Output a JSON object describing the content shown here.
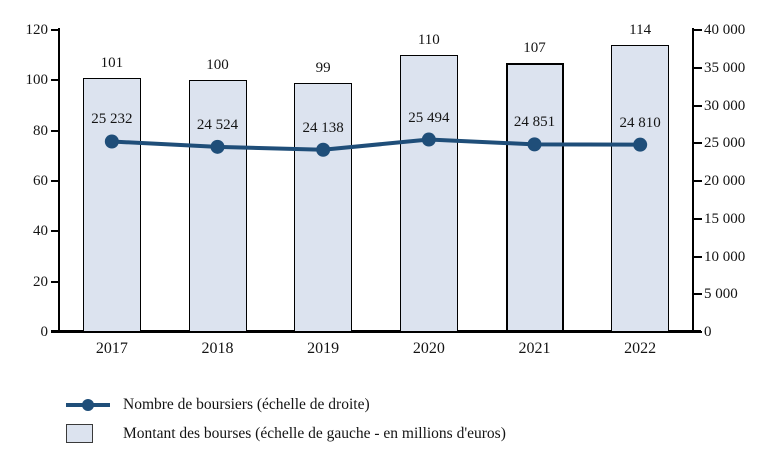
{
  "chart_data": {
    "type": "bar+line combo",
    "categories": [
      "2017",
      "2018",
      "2019",
      "2020",
      "2021",
      "2022"
    ],
    "series": [
      {
        "name": "Montant des bourses (échelle de gauche - en millions d'euros)",
        "type": "bar",
        "axis": "left",
        "values": [
          101,
          100,
          99,
          110,
          107,
          114
        ],
        "labels": [
          "101",
          "100",
          "99",
          "110",
          "107",
          "114"
        ],
        "emphasized_index": 4
      },
      {
        "name": "Nombre de boursiers (échelle de droite)",
        "type": "line",
        "axis": "right",
        "values": [
          25232,
          24524,
          24138,
          25494,
          24851,
          24810
        ],
        "labels": [
          "25 232",
          "24 524",
          "24 138",
          "25 494",
          "24 851",
          "24 810"
        ]
      }
    ],
    "left_axis": {
      "min": 0,
      "max": 120,
      "step": 20,
      "tick_labels": [
        "0",
        "20",
        "40",
        "60",
        "80",
        "100",
        "120"
      ]
    },
    "right_axis": {
      "min": 0,
      "max": 40000,
      "step": 5000,
      "tick_labels": [
        "0",
        "5 000",
        "10 000",
        "15 000",
        "20 000",
        "25 000",
        "30 000",
        "35 000",
        "40 000"
      ]
    },
    "legend": [
      {
        "marker": "line-dot",
        "label": "Nombre de boursiers (échelle de droite)"
      },
      {
        "marker": "box",
        "label": "Montant des bourses (échelle de gauche - en millions d'euros)"
      }
    ],
    "grid": "off",
    "legend_position": "bottom-left",
    "colors": {
      "bar_fill": "#dce3ef",
      "bar_border": "#000000",
      "line": "#1f4e79",
      "axis": "#000000",
      "text": "#141414",
      "background": "#ffffff"
    }
  }
}
